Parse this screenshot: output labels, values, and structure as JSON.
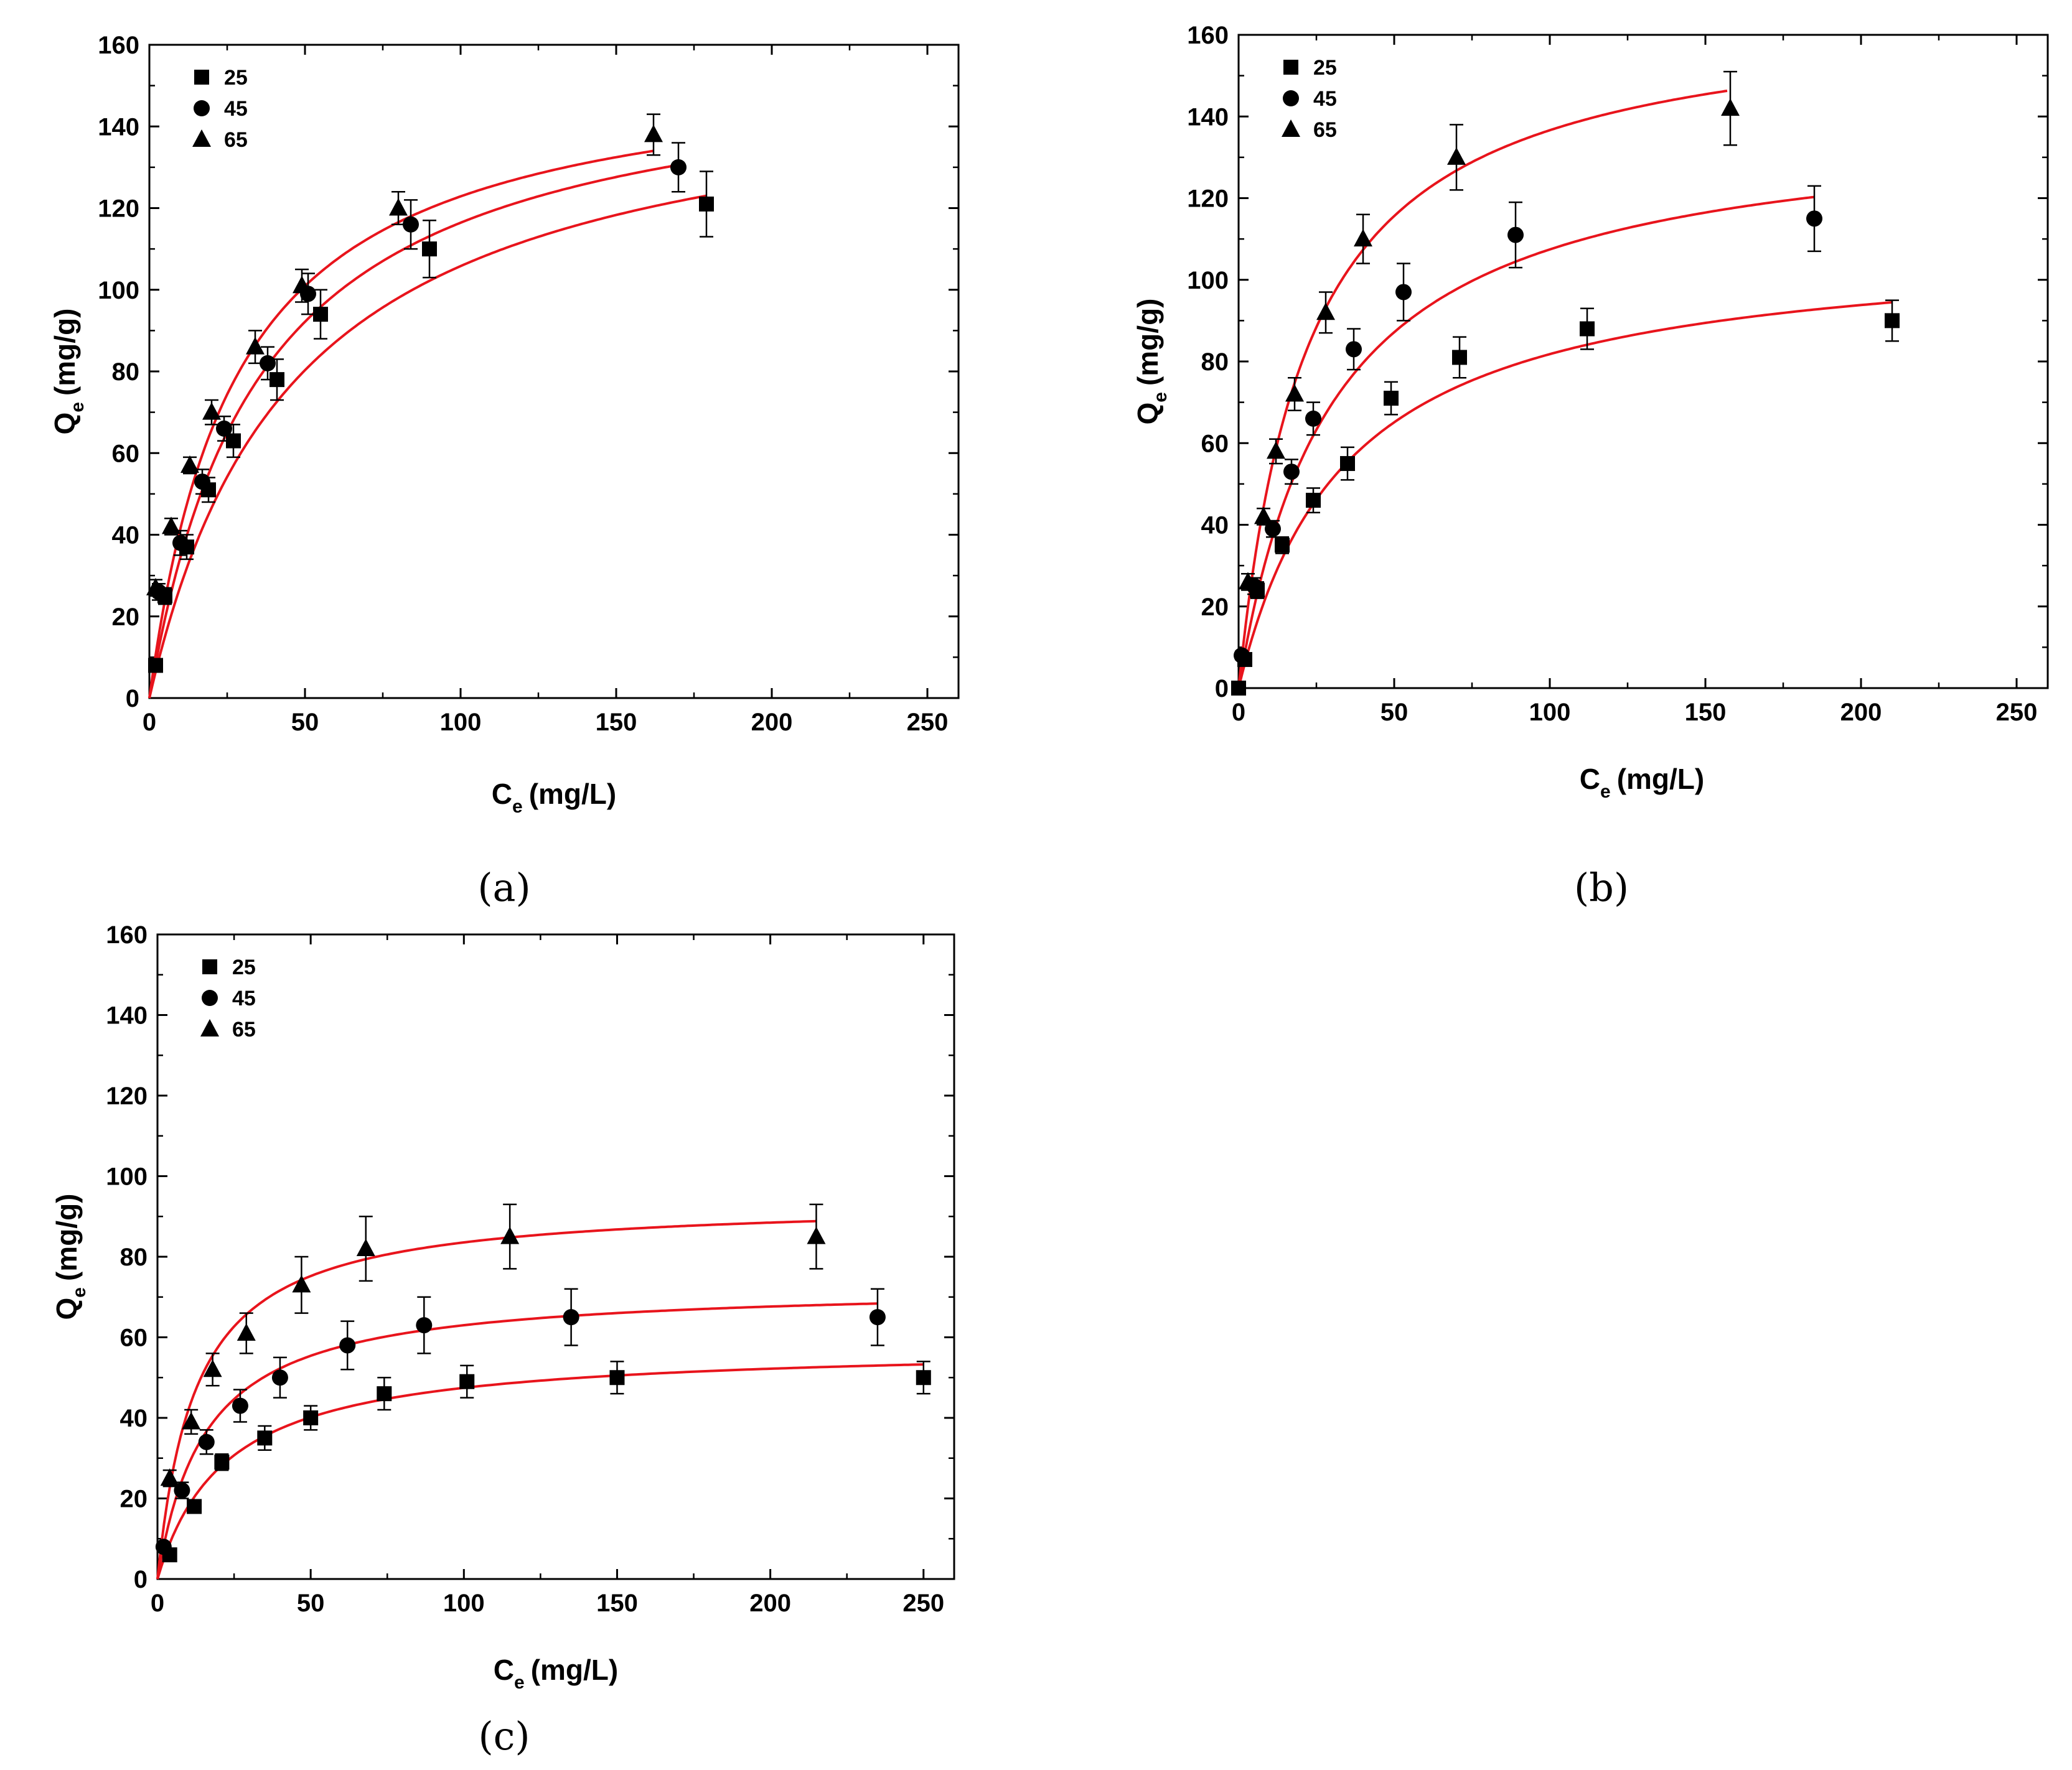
{
  "figure": {
    "panel_labels": [
      "(a)",
      "(b)",
      "(c)"
    ]
  },
  "chart_data": [
    {
      "type": "scatter",
      "panel": "(a)",
      "xlabel": "Ce (mg/L)",
      "xlabel_main": "C",
      "xlabel_sub": "e",
      "xlabel_unit": "(mg/L)",
      "ylabel": "Qe (mg/g)",
      "ylabel_main": "Q",
      "ylabel_sub": "e",
      "ylabel_unit": "(mg/g)",
      "xlim": [
        0,
        260
      ],
      "ylim": [
        0,
        160
      ],
      "xticks": [
        "0",
        "50",
        "100",
        "150",
        "200",
        "250"
      ],
      "yticks": [
        "0",
        "20",
        "40",
        "60",
        "80",
        "100",
        "120",
        "140",
        "160"
      ],
      "legend": [
        "25",
        "45",
        "65"
      ],
      "fit_color": "#e8141c",
      "series": [
        {
          "name": "25",
          "marker": "square",
          "points": [
            [
              2,
              8,
              0
            ],
            [
              5,
              25,
              2
            ],
            [
              12,
              37,
              3
            ],
            [
              19,
              51,
              3
            ],
            [
              27,
              63,
              4
            ],
            [
              41,
              78,
              5
            ],
            [
              55,
              94,
              6
            ],
            [
              90,
              110,
              7
            ],
            [
              179,
              121,
              8
            ]
          ],
          "fit": {
            "qmax": 155,
            "k": 0.0215,
            "xmax": 179
          }
        },
        {
          "name": "45",
          "marker": "circle",
          "points": [
            [
              3,
              26,
              2
            ],
            [
              10,
              38,
              3
            ],
            [
              17,
              53,
              3
            ],
            [
              24,
              66,
              3
            ],
            [
              38,
              82,
              4
            ],
            [
              51,
              99,
              5
            ],
            [
              84,
              116,
              6
            ],
            [
              170,
              130,
              6
            ]
          ],
          "fit": {
            "qmax": 158,
            "k": 0.028,
            "xmax": 170
          }
        },
        {
          "name": "65",
          "marker": "triangle",
          "points": [
            [
              2,
              27,
              2
            ],
            [
              7,
              42,
              2
            ],
            [
              13,
              57,
              2
            ],
            [
              20,
              70,
              3
            ],
            [
              34,
              86,
              4
            ],
            [
              49,
              101,
              4
            ],
            [
              80,
              120,
              4
            ],
            [
              162,
              138,
              5
            ]
          ],
          "fit": {
            "qmax": 157,
            "k": 0.036,
            "xmax": 162
          }
        }
      ]
    },
    {
      "type": "scatter",
      "panel": "(b)",
      "xlabel": "Ce (mg/L)",
      "xlabel_main": "C",
      "xlabel_sub": "e",
      "xlabel_unit": "(mg/L)",
      "ylabel": "Qe (mg/g)",
      "ylabel_main": "Q",
      "ylabel_sub": "e",
      "ylabel_unit": "(mg/g)",
      "xlim": [
        0,
        260
      ],
      "ylim": [
        0,
        160
      ],
      "xticks": [
        "0",
        "50",
        "100",
        "150",
        "200",
        "250"
      ],
      "yticks": [
        "0",
        "20",
        "40",
        "60",
        "80",
        "100",
        "120",
        "140",
        "160"
      ],
      "legend": [
        "25",
        "45",
        "65"
      ],
      "fit_color": "#e8141c",
      "series": [
        {
          "name": "25",
          "marker": "square",
          "points": [
            [
              0,
              0,
              0
            ],
            [
              2,
              7,
              1
            ],
            [
              6,
              24,
              2
            ],
            [
              14,
              35,
              2
            ],
            [
              24,
              46,
              3
            ],
            [
              35,
              55,
              4
            ],
            [
              49,
              71,
              4
            ],
            [
              71,
              81,
              5
            ],
            [
              112,
              88,
              5
            ],
            [
              210,
              90,
              5
            ]
          ],
          "fit": {
            "qmax": 110,
            "k": 0.029,
            "xmax": 210
          }
        },
        {
          "name": "45",
          "marker": "circle",
          "points": [
            [
              1,
              8,
              1
            ],
            [
              5,
              25,
              2
            ],
            [
              11,
              39,
              2
            ],
            [
              17,
              53,
              3
            ],
            [
              24,
              66,
              4
            ],
            [
              37,
              83,
              5
            ],
            [
              53,
              97,
              7
            ],
            [
              89,
              111,
              8
            ],
            [
              185,
              115,
              8
            ]
          ],
          "fit": {
            "qmax": 140,
            "k": 0.033,
            "xmax": 185
          }
        },
        {
          "name": "65",
          "marker": "triangle",
          "points": [
            [
              3,
              26,
              2
            ],
            [
              8,
              42,
              2
            ],
            [
              12,
              58,
              3
            ],
            [
              18,
              72,
              4
            ],
            [
              28,
              92,
              5
            ],
            [
              40,
              110,
              6
            ],
            [
              70,
              130,
              8
            ],
            [
              158,
              142,
              9
            ]
          ],
          "fit": {
            "qmax": 167,
            "k": 0.045,
            "xmax": 157
          }
        }
      ]
    },
    {
      "type": "scatter",
      "panel": "(c)",
      "xlabel": "Ce (mg/L)",
      "xlabel_main": "C",
      "xlabel_sub": "e",
      "xlabel_unit": "(mg/L)",
      "ylabel": "Qe (mg/g)",
      "ylabel_main": "Q",
      "ylabel_sub": "e",
      "ylabel_unit": "(mg/g)",
      "xlim": [
        0,
        260
      ],
      "ylim": [
        0,
        160
      ],
      "xticks": [
        "0",
        "50",
        "100",
        "150",
        "200",
        "250"
      ],
      "yticks": [
        "0",
        "20",
        "40",
        "60",
        "80",
        "100",
        "120",
        "140",
        "160"
      ],
      "legend": [
        "25",
        "45",
        "65"
      ],
      "fit_color": "#e8141c",
      "series": [
        {
          "name": "25",
          "marker": "square",
          "points": [
            [
              4,
              6,
              1
            ],
            [
              12,
              18,
              1
            ],
            [
              21,
              29,
              2
            ],
            [
              35,
              35,
              3
            ],
            [
              50,
              40,
              3
            ],
            [
              74,
              46,
              4
            ],
            [
              101,
              49,
              4
            ],
            [
              150,
              50,
              4
            ],
            [
              250,
              50,
              4
            ]
          ],
          "fit": {
            "qmax": 58,
            "k": 0.045,
            "xmax": 250
          }
        },
        {
          "name": "45",
          "marker": "circle",
          "points": [
            [
              2,
              8,
              1
            ],
            [
              8,
              22,
              2
            ],
            [
              16,
              34,
              3
            ],
            [
              27,
              43,
              4
            ],
            [
              40,
              50,
              5
            ],
            [
              62,
              58,
              6
            ],
            [
              87,
              63,
              7
            ],
            [
              135,
              65,
              7
            ],
            [
              235,
              65,
              7
            ]
          ],
          "fit": {
            "qmax": 73,
            "k": 0.063,
            "xmax": 235
          }
        },
        {
          "name": "65",
          "marker": "triangle",
          "points": [
            [
              4,
              25,
              2
            ],
            [
              11,
              39,
              3
            ],
            [
              18,
              52,
              4
            ],
            [
              29,
              61,
              5
            ],
            [
              47,
              73,
              7
            ],
            [
              68,
              82,
              8
            ],
            [
              115,
              85,
              8
            ],
            [
              215,
              85,
              8
            ]
          ],
          "fit": {
            "qmax": 94,
            "k": 0.08,
            "xmax": 215
          }
        }
      ]
    }
  ]
}
